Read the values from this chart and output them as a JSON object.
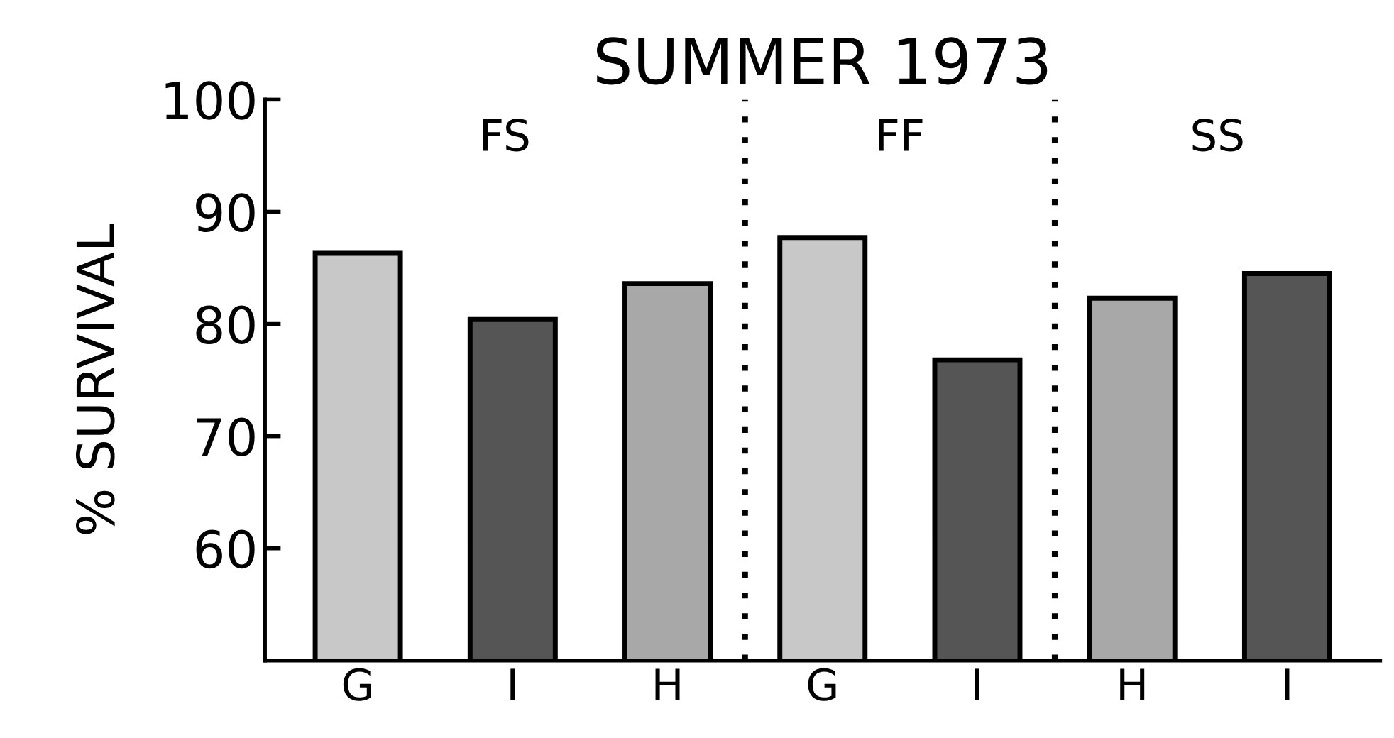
{
  "chart_data": {
    "type": "bar",
    "title": "SUMMER 1973",
    "ylabel": "% SURVIVAL",
    "categories": [
      "G",
      "I",
      "H",
      "G",
      "I",
      "H",
      "I"
    ],
    "values": [
      86.3,
      80.4,
      83.6,
      87.7,
      76.8,
      82.3,
      84.5
    ],
    "colors": [
      "#c8c8c8",
      "#555555",
      "#a8a8a8",
      "#c8c8c8",
      "#555555",
      "#a8a8a8",
      "#555555"
    ],
    "ylim": [
      50,
      100
    ],
    "yticks": [
      60,
      70,
      80,
      90,
      100
    ],
    "annotations": [
      "FS",
      "FF",
      "SS"
    ],
    "grid": false,
    "legend": false
  }
}
